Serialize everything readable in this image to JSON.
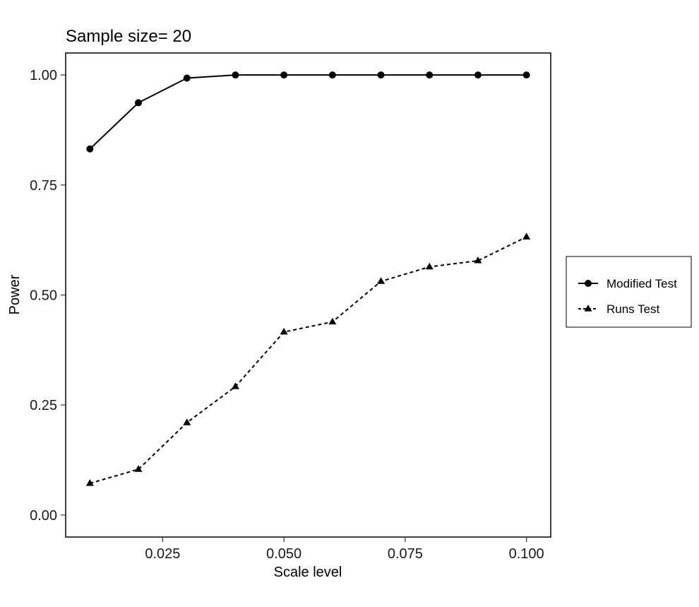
{
  "chart_data": {
    "type": "line",
    "title": "Sample size= 20",
    "xlabel": "Scale level",
    "ylabel": "Power",
    "xlim": [
      0.005,
      0.105
    ],
    "ylim": [
      -0.05,
      1.05
    ],
    "x_ticks": [
      {
        "value": 0.025,
        "label": "0.025"
      },
      {
        "value": 0.05,
        "label": "0.050"
      },
      {
        "value": 0.075,
        "label": "0.075"
      },
      {
        "value": 0.1,
        "label": "0.100"
      }
    ],
    "y_ticks": [
      {
        "value": 0.0,
        "label": "0.00"
      },
      {
        "value": 0.25,
        "label": "0.25"
      },
      {
        "value": 0.5,
        "label": "0.50"
      },
      {
        "value": 0.75,
        "label": "0.75"
      },
      {
        "value": 1.0,
        "label": "1.00"
      }
    ],
    "x": [
      0.01,
      0.02,
      0.03,
      0.04,
      0.05,
      0.06,
      0.07,
      0.08,
      0.09,
      0.1
    ],
    "series": [
      {
        "name": "Modified Test",
        "values": [
          0.832,
          0.937,
          0.993,
          1.0,
          1.0,
          1.0,
          1.0,
          1.0,
          1.0,
          1.0
        ],
        "line": "solid",
        "marker": "circle",
        "color": "#000000"
      },
      {
        "name": "Runs Test",
        "values": [
          0.072,
          0.104,
          0.21,
          0.292,
          0.416,
          0.439,
          0.531,
          0.564,
          0.578,
          0.632
        ],
        "line": "dashed",
        "marker": "triangle",
        "color": "#000000"
      }
    ],
    "grid": false,
    "legend_position": "right"
  }
}
